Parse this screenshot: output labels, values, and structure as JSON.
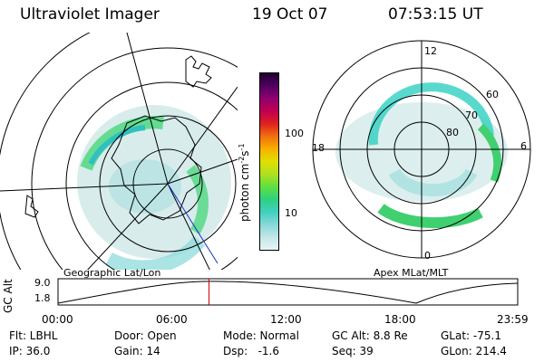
{
  "header": {
    "instrument": "Ultraviolet Imager",
    "date": "19 Oct 07",
    "time": "07:53:15 UT"
  },
  "left_map": {
    "caption": "Geographic Lat/Lon"
  },
  "right_map": {
    "caption": "Apex MLat/MLT",
    "mlt_labels": [
      "12",
      "6",
      "0",
      "18"
    ],
    "lat_labels": [
      "60",
      "70",
      "80"
    ]
  },
  "colorbar": {
    "unit_label": "photon cm",
    "unit_sup1": "-2",
    "unit_mid": "s",
    "unit_sup2": "-1",
    "ticks": [
      "100",
      "10"
    ],
    "colors": [
      "#e8f4f4",
      "#c4e6e6",
      "#88d8d8",
      "#40d0c0",
      "#30d080",
      "#60e040",
      "#b0e020",
      "#e0e000",
      "#f8b000",
      "#f07010",
      "#e02020",
      "#c00050",
      "#900070",
      "#500060",
      "#200030"
    ]
  },
  "timeline": {
    "axis_label": "GC Alt",
    "ytick_top": "9.0",
    "ytick_bottom": "1.8",
    "x_ticks": [
      "00:00",
      "06:00",
      "12:00",
      "18:00",
      "23:59"
    ],
    "marker_time": "07:53",
    "marker_color": "#d00000"
  },
  "status": {
    "flt": "Flt: LBHL",
    "ip": "IP: 36.0",
    "door": "Door: Open",
    "gain": "Gain: 14",
    "mode": "Mode: Normal",
    "dsp": "Dsp:   -1.6",
    "gcalt": "GC Alt: 8.8 Re",
    "seq": "Seq: 39",
    "glat": "GLat: -75.1",
    "glon": "GLon: 214.4"
  }
}
